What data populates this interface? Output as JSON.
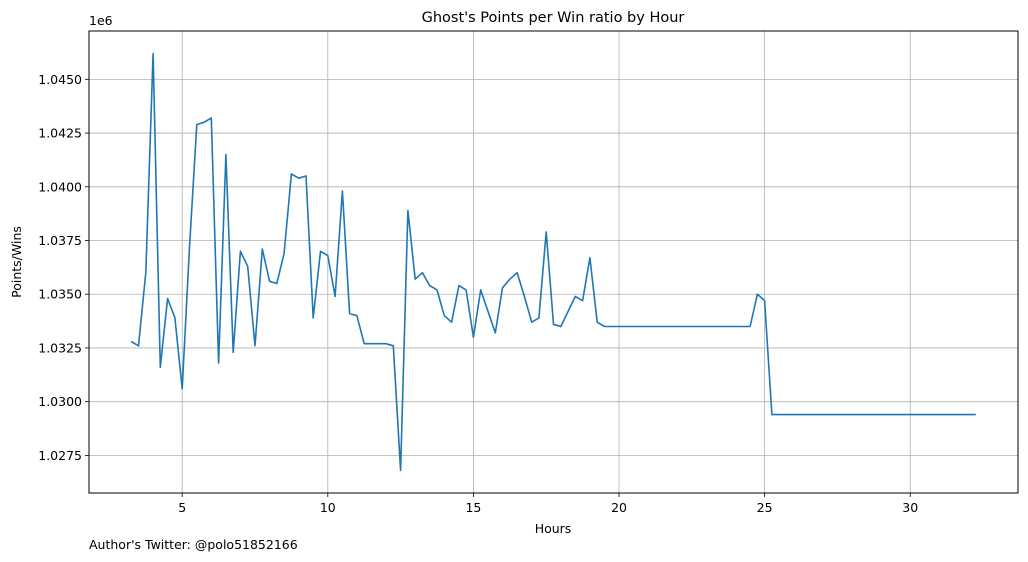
{
  "chart_data": {
    "type": "line",
    "title": "Ghost's Points per Win ratio by Hour",
    "xlabel": "Hours",
    "ylabel": "Points/Wins",
    "y_offset_text": "1e6",
    "xlim": [
      1.8,
      33.7
    ],
    "ylim": [
      1.02575,
      1.04725
    ],
    "xticks": [
      5,
      10,
      15,
      20,
      25,
      30
    ],
    "xtick_labels": [
      "5",
      "10",
      "15",
      "20",
      "25",
      "30"
    ],
    "yticks": [
      1.0275,
      1.03,
      1.0325,
      1.035,
      1.0375,
      1.04,
      1.0425,
      1.045
    ],
    "ytick_labels": [
      "1.0275",
      "1.0300",
      "1.0325",
      "1.0350",
      "1.0375",
      "1.0400",
      "1.0425",
      "1.0450"
    ],
    "grid": true,
    "line_color": "#1f77b4",
    "x": [
      3.25,
      3.5,
      3.75,
      4.0,
      4.25,
      4.5,
      4.75,
      5.0,
      5.25,
      5.5,
      5.75,
      6.0,
      6.25,
      6.5,
      6.75,
      7.0,
      7.25,
      7.5,
      7.75,
      8.0,
      8.25,
      8.5,
      8.75,
      9.0,
      9.25,
      9.5,
      9.75,
      10.0,
      10.25,
      10.5,
      10.75,
      11.0,
      11.25,
      11.5,
      11.75,
      12.0,
      12.25,
      12.5,
      12.75,
      13.0,
      13.25,
      13.5,
      13.75,
      14.0,
      14.25,
      14.5,
      14.75,
      15.0,
      15.25,
      15.5,
      15.75,
      16.0,
      16.25,
      16.5,
      16.75,
      17.0,
      17.25,
      17.5,
      17.75,
      18.0,
      18.25,
      18.5,
      18.75,
      19.0,
      19.25,
      19.5,
      19.75,
      20.0,
      20.25,
      20.5,
      20.75,
      21.0,
      21.25,
      21.5,
      21.75,
      22.0,
      22.25,
      22.5,
      22.75,
      23.0,
      23.25,
      23.5,
      23.75,
      24.0,
      24.25,
      24.5,
      24.75,
      25.0,
      25.25,
      25.5,
      25.75,
      26.0,
      26.5,
      27.0,
      27.5,
      28.0,
      28.5,
      29.0,
      29.5,
      30.0,
      30.5,
      31.0,
      31.5,
      32.0,
      32.25
    ],
    "y": [
      1.0328,
      1.0326,
      1.036,
      1.0462,
      1.0316,
      1.0348,
      1.0339,
      1.0306,
      1.0372,
      1.0429,
      1.043,
      1.0432,
      1.0318,
      1.0415,
      1.0323,
      1.037,
      1.0363,
      1.0326,
      1.0371,
      1.0356,
      1.0355,
      1.0369,
      1.0406,
      1.0404,
      1.0405,
      1.0339,
      1.037,
      1.0368,
      1.0349,
      1.0398,
      1.0341,
      1.034,
      1.0327,
      1.0327,
      1.0327,
      1.0327,
      1.0326,
      1.0268,
      1.0389,
      1.0357,
      1.036,
      1.0354,
      1.0352,
      1.034,
      1.0337,
      1.0354,
      1.0352,
      1.033,
      1.0352,
      1.0342,
      1.0332,
      1.0353,
      1.0357,
      1.036,
      1.0349,
      1.0337,
      1.0339,
      1.0379,
      1.0336,
      1.0335,
      1.0342,
      1.0349,
      1.0347,
      1.0367,
      1.0337,
      1.0335,
      1.0335,
      1.0335,
      1.0335,
      1.0335,
      1.0335,
      1.0335,
      1.0335,
      1.0335,
      1.0335,
      1.0335,
      1.0335,
      1.0335,
      1.0335,
      1.0335,
      1.0335,
      1.0335,
      1.0335,
      1.0335,
      1.0335,
      1.0335,
      1.035,
      1.0347,
      1.0294,
      1.0294,
      1.0294,
      1.0294,
      1.0294,
      1.0294,
      1.0294,
      1.0294,
      1.0294,
      1.0294,
      1.0294,
      1.0294,
      1.0294,
      1.0294,
      1.0294,
      1.0294,
      1.0294
    ]
  },
  "footer_text": "Author's Twitter: @polo51852166"
}
